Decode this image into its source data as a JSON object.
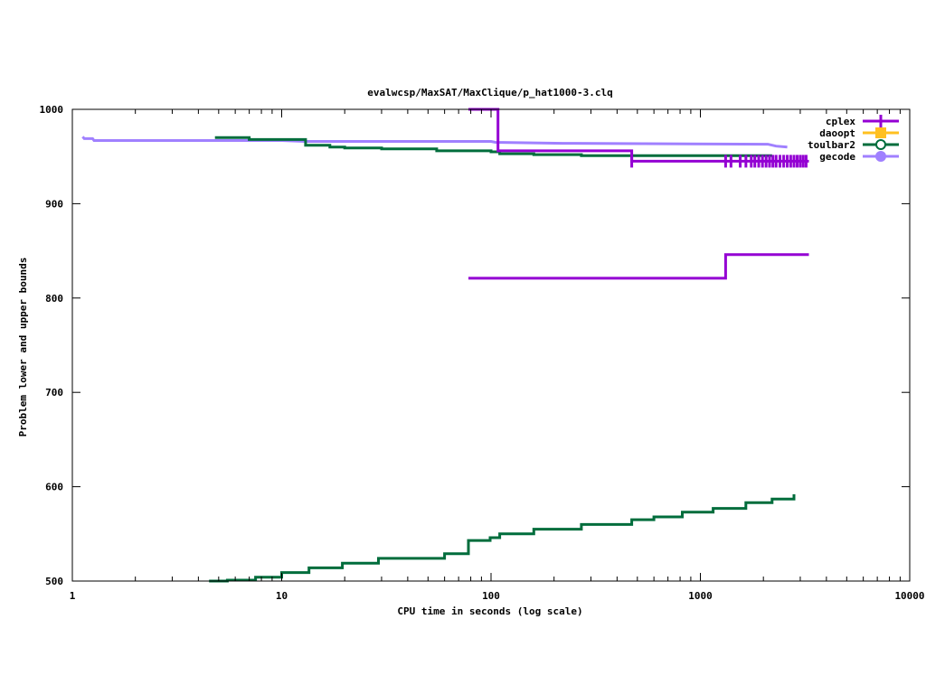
{
  "chart_data": {
    "type": "line",
    "title": "evalwcsp/MaxSAT/MaxClique/p_hat1000-3.clq",
    "xlabel": "CPU time in seconds (log scale)",
    "ylabel": "Problem lower and upper bounds",
    "xscale": "log",
    "xlim": [
      1,
      10000
    ],
    "ylim": [
      500,
      1000
    ],
    "x_ticks": [
      1,
      10,
      100,
      1000,
      10000
    ],
    "x_tick_labels": [
      "1",
      "10",
      "100",
      "1000",
      "10000"
    ],
    "y_ticks": [
      500,
      600,
      700,
      800,
      900,
      1000
    ],
    "y_tick_labels": [
      "500",
      "600",
      "700",
      "800",
      "900",
      "1000"
    ],
    "grid": false,
    "legend_position": "top-right",
    "legend": [
      {
        "name": "cplex",
        "color": "#9400d3",
        "marker": "plus"
      },
      {
        "name": "daoopt",
        "color": "#ffc020",
        "marker": "filled-square"
      },
      {
        "name": "toulbar2",
        "color": "#006d3c",
        "marker": "open-circle"
      },
      {
        "name": "gecode",
        "color": "#a080ff",
        "marker": "filled-circle"
      }
    ],
    "series": [
      {
        "name": "gecode",
        "color": "#a080ff",
        "curves": [
          [
            [
              1.12,
              971
            ],
            [
              1.14,
              969
            ],
            [
              1.25,
              969
            ],
            [
              1.27,
              967
            ],
            [
              10,
              967
            ],
            [
              13,
              966
            ],
            [
              100,
              966
            ],
            [
              105,
              965
            ],
            [
              220,
              964
            ],
            [
              2100,
              963
            ],
            [
              2300,
              961
            ],
            [
              2600,
              960
            ]
          ]
        ]
      },
      {
        "name": "toulbar2",
        "color": "#006d3c",
        "curves": [
          [
            [
              4.8,
              970
            ],
            [
              7,
              970
            ],
            [
              7,
              968
            ],
            [
              13,
              968
            ],
            [
              13,
              962
            ],
            [
              17,
              962
            ],
            [
              17,
              960
            ],
            [
              20,
              960
            ],
            [
              20,
              959
            ],
            [
              30,
              959
            ],
            [
              30,
              958
            ],
            [
              55,
              958
            ],
            [
              55,
              956
            ],
            [
              100,
              956
            ],
            [
              100,
              955
            ],
            [
              110,
              955
            ],
            [
              110,
              953
            ],
            [
              160,
              953
            ],
            [
              160,
              952
            ],
            [
              270,
              952
            ],
            [
              270,
              951
            ],
            [
              2200,
              951
            ]
          ],
          [
            [
              4.5,
              500
            ],
            [
              5.5,
              500
            ],
            [
              5.5,
              501
            ],
            [
              7.5,
              501
            ],
            [
              7.5,
              504
            ],
            [
              10,
              504
            ],
            [
              10,
              509
            ],
            [
              13.5,
              509
            ],
            [
              13.5,
              514
            ],
            [
              19.5,
              514
            ],
            [
              19.5,
              519
            ],
            [
              29,
              519
            ],
            [
              29,
              524
            ],
            [
              60,
              524
            ],
            [
              60,
              529
            ],
            [
              78,
              529
            ],
            [
              78,
              543
            ],
            [
              99,
              543
            ],
            [
              99,
              546
            ],
            [
              110,
              546
            ],
            [
              110,
              550
            ],
            [
              160,
              550
            ],
            [
              160,
              555
            ],
            [
              270,
              555
            ],
            [
              270,
              560
            ],
            [
              470,
              560
            ],
            [
              470,
              565
            ],
            [
              600,
              565
            ],
            [
              600,
              568
            ],
            [
              820,
              568
            ],
            [
              820,
              573
            ],
            [
              1150,
              573
            ],
            [
              1150,
              577
            ],
            [
              1650,
              577
            ],
            [
              1650,
              583
            ],
            [
              2200,
              583
            ],
            [
              2200,
              587
            ],
            [
              2800,
              587
            ],
            [
              2800,
              592
            ]
          ]
        ]
      },
      {
        "name": "cplex",
        "color": "#9400d3",
        "curves": [
          [
            [
              78,
              1000
            ],
            [
              108,
              1000
            ],
            [
              108,
              956
            ],
            [
              470,
              956
            ],
            [
              470,
              945
            ],
            [
              3300,
              945
            ]
          ],
          [
            [
              78,
              821
            ],
            [
              1320,
              821
            ],
            [
              1320,
              846
            ],
            [
              3300,
              846
            ]
          ]
        ],
        "points": [
          [
            470,
            945
          ],
          [
            1320,
            945
          ],
          [
            1400,
            945
          ],
          [
            1550,
            945
          ],
          [
            1650,
            945
          ],
          [
            1750,
            945
          ],
          [
            1820,
            945
          ],
          [
            1900,
            945
          ],
          [
            1980,
            945
          ],
          [
            2060,
            945
          ],
          [
            2140,
            945
          ],
          [
            2220,
            945
          ],
          [
            2300,
            945
          ],
          [
            2400,
            945
          ],
          [
            2500,
            945
          ],
          [
            2600,
            945
          ],
          [
            2700,
            945
          ],
          [
            2800,
            945
          ],
          [
            2900,
            945
          ],
          [
            3000,
            945
          ],
          [
            3100,
            945
          ],
          [
            3200,
            945
          ]
        ]
      }
    ]
  }
}
